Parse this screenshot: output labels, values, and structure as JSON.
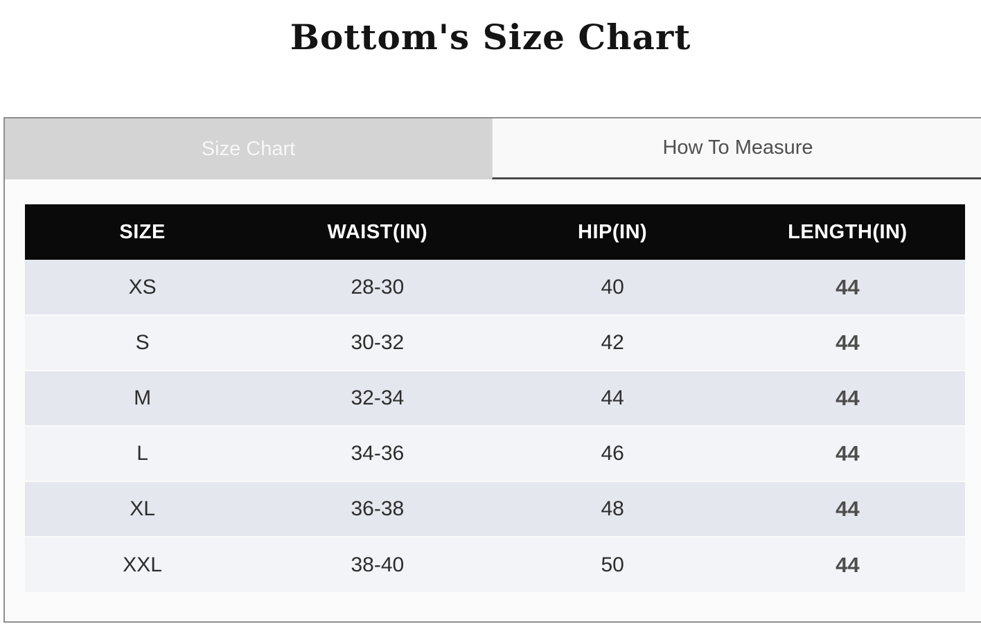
{
  "title": "Bottom's Size Chart",
  "tabs": {
    "size_chart": {
      "label": "Size Chart",
      "active": true
    },
    "how_to_measure": {
      "label": "How To Measure",
      "active": false
    }
  },
  "table": {
    "columns": [
      "SIZE",
      "WAIST(IN)",
      "HIP(IN)",
      "LENGTH(IN)"
    ],
    "rows": [
      {
        "size": "XS",
        "waist": "28-30",
        "hip": "40",
        "length": "44"
      },
      {
        "size": "S",
        "waist": "30-32",
        "hip": "42",
        "length": "44"
      },
      {
        "size": "M",
        "waist": "32-34",
        "hip": "44",
        "length": "44"
      },
      {
        "size": "L",
        "waist": "34-36",
        "hip": "46",
        "length": "44"
      },
      {
        "size": "XL",
        "waist": "36-38",
        "hip": "48",
        "length": "44"
      },
      {
        "size": "XXL",
        "waist": "38-40",
        "hip": "50",
        "length": "44"
      }
    ]
  },
  "colors": {
    "header_bg": "#0a0a0a",
    "header_text": "#ffffff",
    "row_odd_bg": "#e4e7ee",
    "row_even_bg": "#f2f4f8",
    "tab_active_bg": "#d4d4d4",
    "tab_active_text": "#f7f7f7",
    "tab_inactive_bg": "#f9f9f9",
    "tab_inactive_text": "#4f4f4f",
    "tab_inactive_underline": "#4a4a4a",
    "panel_border": "#8e8e8e",
    "length_text": "#4d4d4d"
  }
}
